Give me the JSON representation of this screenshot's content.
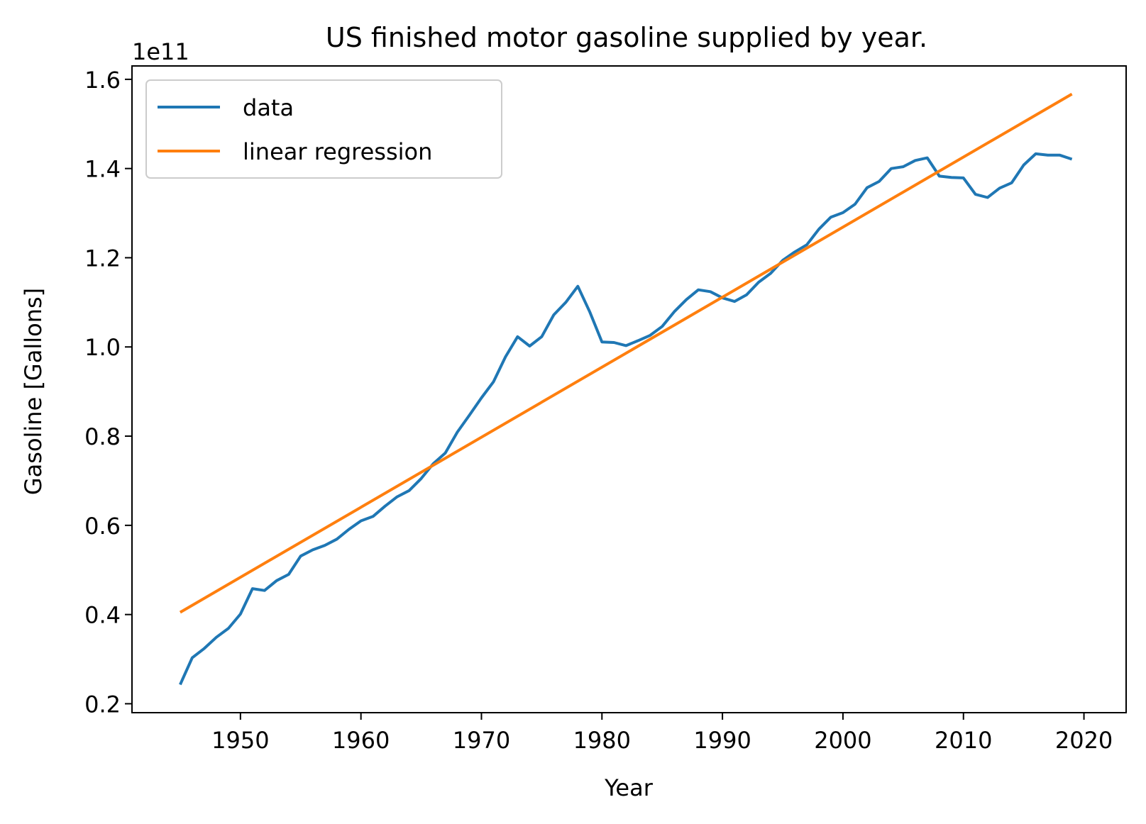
{
  "chart_data": {
    "type": "line",
    "title": "US finished motor gasoline supplied by year.",
    "xlabel": "Year",
    "ylabel": "Gasoline [Gallons]",
    "y_offset_label": "1e11",
    "y_scale_factor": 100000000000,
    "xlim": [
      1941,
      2023.5
    ],
    "ylim": [
      0.18,
      1.63
    ],
    "xticks": [
      1950,
      1960,
      1970,
      1980,
      1990,
      2000,
      2010,
      2020
    ],
    "xtick_labels": [
      "1950",
      "1960",
      "1970",
      "1980",
      "1990",
      "2000",
      "2010",
      "2020"
    ],
    "yticks": [
      0.2,
      0.4,
      0.6,
      0.8,
      1.0,
      1.2,
      1.4,
      1.6
    ],
    "ytick_labels": [
      "0.2",
      "0.4",
      "0.6",
      "0.8",
      "1.0",
      "1.2",
      "1.4",
      "1.6"
    ],
    "grid": false,
    "legend_position": "upper-left",
    "series": [
      {
        "name": "data",
        "color": "#1f77b4",
        "x": [
          1945,
          1946,
          1947,
          1948,
          1949,
          1950,
          1951,
          1952,
          1953,
          1954,
          1955,
          1956,
          1957,
          1958,
          1959,
          1960,
          1961,
          1962,
          1963,
          1964,
          1965,
          1966,
          1967,
          1968,
          1969,
          1970,
          1971,
          1972,
          1973,
          1974,
          1975,
          1976,
          1977,
          1978,
          1979,
          1980,
          1981,
          1982,
          1983,
          1984,
          1985,
          1986,
          1987,
          1988,
          1989,
          1990,
          1991,
          1992,
          1993,
          1994,
          1995,
          1996,
          1997,
          1998,
          1999,
          2000,
          2001,
          2002,
          2003,
          2004,
          2005,
          2006,
          2007,
          2008,
          2009,
          2010,
          2011,
          2012,
          2013,
          2014,
          2015,
          2016,
          2017,
          2018,
          2019
        ],
        "y": [
          0.243,
          0.303,
          0.324,
          0.349,
          0.369,
          0.401,
          0.458,
          0.454,
          0.476,
          0.49,
          0.531,
          0.545,
          0.555,
          0.569,
          0.591,
          0.61,
          0.62,
          0.643,
          0.664,
          0.678,
          0.705,
          0.738,
          0.762,
          0.809,
          0.847,
          0.886,
          0.922,
          0.978,
          1.023,
          1.002,
          1.023,
          1.072,
          1.1,
          1.136,
          1.078,
          1.011,
          1.01,
          1.003,
          1.014,
          1.026,
          1.046,
          1.079,
          1.106,
          1.128,
          1.124,
          1.11,
          1.102,
          1.117,
          1.145,
          1.165,
          1.194,
          1.213,
          1.229,
          1.264,
          1.291,
          1.301,
          1.32,
          1.357,
          1.371,
          1.4,
          1.404,
          1.418,
          1.424,
          1.383,
          1.38,
          1.379,
          1.342,
          1.335,
          1.356,
          1.368,
          1.408,
          1.433,
          1.43,
          1.43,
          1.421
        ]
      },
      {
        "name": "linear regression",
        "color": "#ff7f0e",
        "x": [
          1945,
          2019
        ],
        "y": [
          0.405,
          1.567
        ]
      }
    ]
  }
}
